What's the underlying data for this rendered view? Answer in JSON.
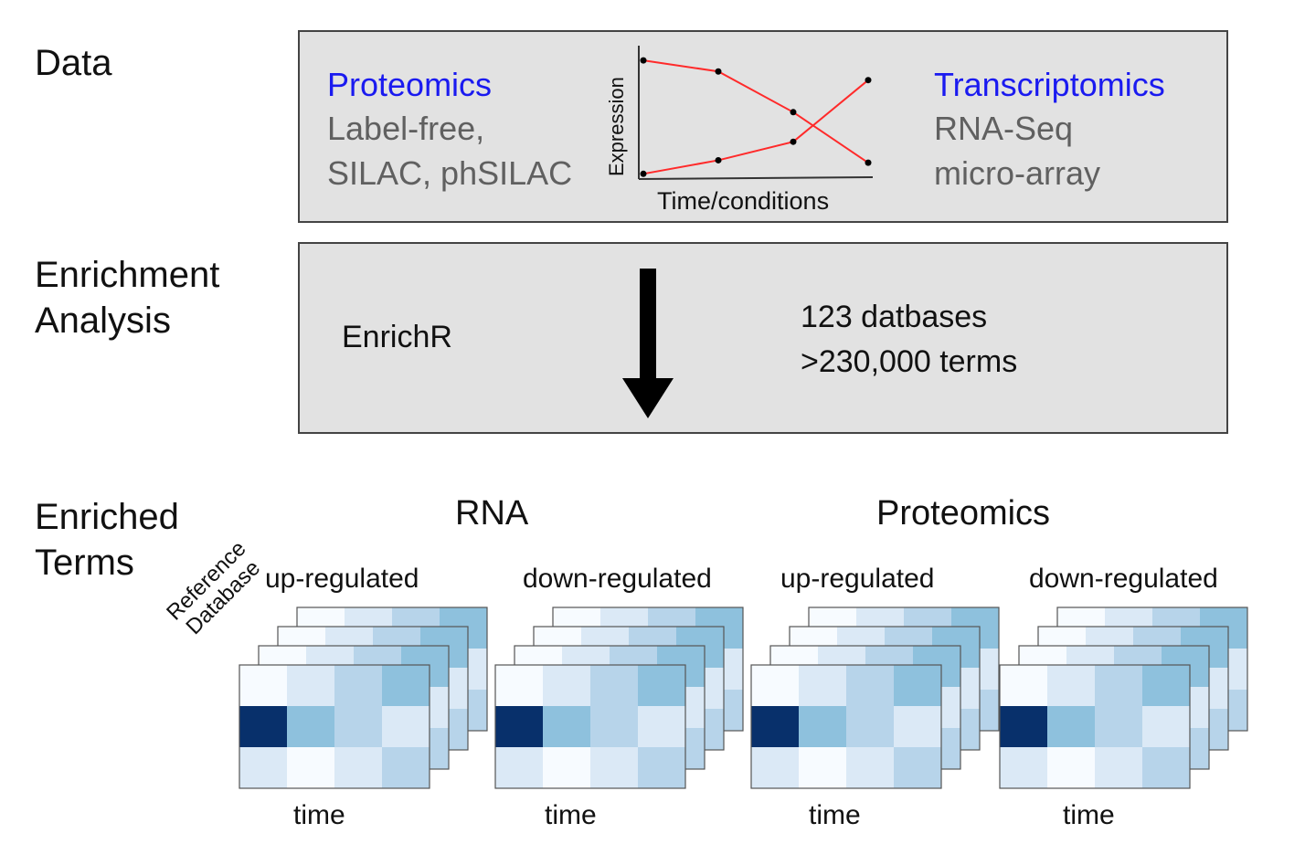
{
  "rows": {
    "data": "Data",
    "enrichment": [
      "Enrichment",
      "Analysis"
    ],
    "terms": [
      "Enriched",
      "Terms"
    ]
  },
  "data_panel": {
    "proteomics_title": "Proteomics",
    "proteomics_methods": [
      "Label-free,",
      "SILAC, phSILAC"
    ],
    "transcriptomics_title": "Transcriptomics",
    "transcriptomics_methods": [
      "RNA-Seq",
      "micro-array"
    ],
    "chart": {
      "ylabel": "Expression",
      "xlabel": "Time/conditions",
      "colors": {
        "line": "#ff2a2a",
        "point": "#000000",
        "axis": "#333333"
      }
    }
  },
  "chart_data": {
    "type": "line",
    "title": "",
    "xlabel": "Time/conditions",
    "ylabel": "Expression",
    "x": [
      1,
      2,
      3,
      4
    ],
    "ylim": [
      0,
      1
    ],
    "series": [
      {
        "values": [
          0.94,
          0.85,
          0.52,
          0.11
        ]
      },
      {
        "values": [
          0.02,
          0.13,
          0.28,
          0.78
        ]
      }
    ]
  },
  "analysis_panel": {
    "tool": "EnrichR",
    "databases": "123 datbases",
    "terms": ">230,000 terms"
  },
  "results": {
    "groups": [
      "RNA",
      "Proteomics"
    ],
    "panels": [
      "up-regulated",
      "down-regulated",
      "up-regulated",
      "down-regulated"
    ],
    "axis_label": "time",
    "stack_label": [
      "Reference",
      "Database"
    ],
    "heatmap": {
      "rows": 3,
      "cols": 4,
      "values": [
        [
          0.02,
          0.2,
          0.45,
          0.7
        ],
        [
          1.0,
          0.6,
          0.45,
          0.28
        ],
        [
          0.3,
          0.1,
          0.3,
          0.45
        ]
      ],
      "colors": [
        "#f7fbff",
        "#dbe9f6",
        "#b7d4ea",
        "#8ec1dd",
        "#4f9bcb",
        "#08306b"
      ]
    }
  }
}
